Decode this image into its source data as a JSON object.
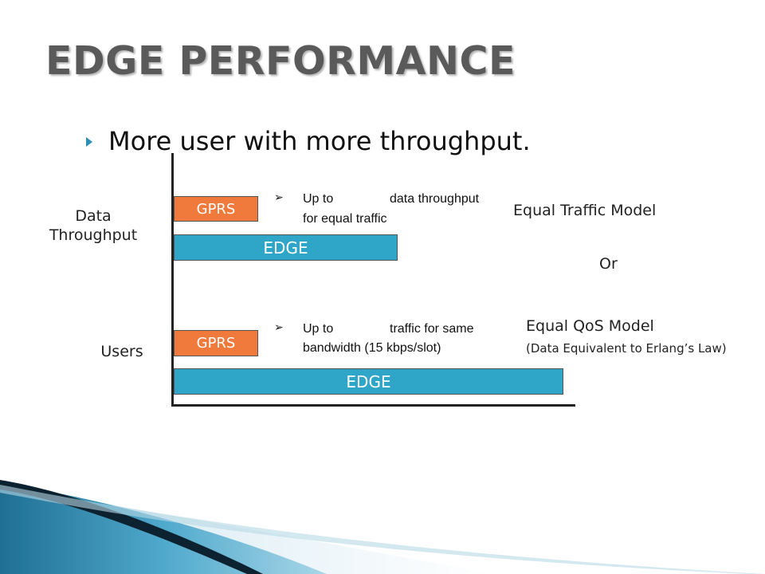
{
  "title": "EDGE PERFORMANCE",
  "bullet": "More user with more throughput.",
  "labels": {
    "data_throughput_line1": "Data",
    "data_throughput_line2": "Throughput",
    "users": "Users"
  },
  "bars": {
    "gprs_top": "GPRS",
    "edge_top": "EDGE",
    "gprs_bottom": "GPRS",
    "edge_bottom": "EDGE"
  },
  "notes": {
    "top_line1_a": "Up to",
    "top_line1_b": "data throughput",
    "top_line2": "for equal traffic",
    "bottom_line1_a": "Up to",
    "bottom_line1_b": "traffic for same",
    "bottom_line2": "bandwidth (15 kbps/slot)"
  },
  "models": {
    "equal_traffic": "Equal Traffic Model",
    "or": "Or",
    "equal_qos": "Equal QoS Model",
    "equal_qos_sub": "(Data Equivalent to Erlang’s Law)"
  },
  "colors": {
    "gprs": "#f07a3c",
    "edge": "#2fa5c8",
    "title": "#5a5a5a",
    "accent": "#2b8fb6"
  }
}
